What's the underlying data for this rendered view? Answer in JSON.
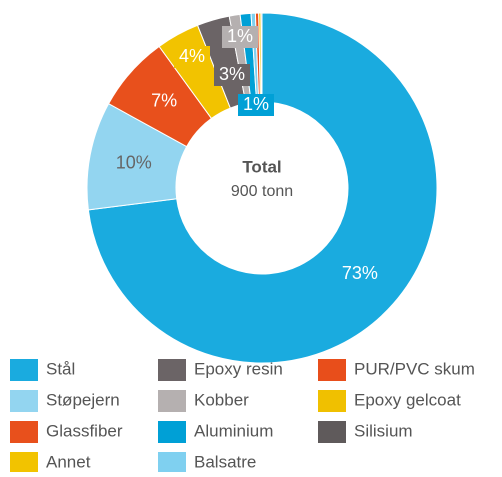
{
  "chart_data": {
    "type": "donut",
    "center_title": "Total",
    "center_subtitle": "900 tonn",
    "categories": [
      "Stål",
      "Støpejern",
      "Glassfiber",
      "Annet",
      "Epoxy resin",
      "Kobber",
      "Aluminium",
      "Balsatre",
      "PUR/PVC skum",
      "Epoxy gelcoat",
      "Silisium"
    ],
    "values": [
      73,
      10,
      7,
      4,
      3,
      1,
      1,
      0.4,
      0.3,
      0.2,
      0.1
    ],
    "value_labels": [
      "73%",
      "10%",
      "7%",
      "4%",
      "3%",
      "1%",
      "1%",
      null,
      null,
      null,
      null
    ],
    "colors": [
      "#1aabdf",
      "#93d5f0",
      "#e8501c",
      "#f2c300",
      "#6b6466",
      "#b5b0b0",
      "#00a0d6",
      "#7fd0f0",
      "#e84e1b",
      "#f0c000",
      "#5f5a5b"
    ],
    "legend": "bottom"
  }
}
